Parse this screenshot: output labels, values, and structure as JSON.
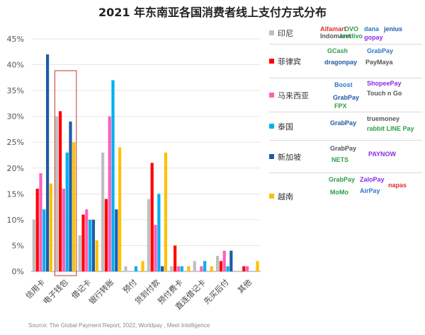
{
  "title": "2021 年东南亚各国消费者线上支付方式分布",
  "source": "Source:   The Global Payment Report, 2022, Worldpay ,  Meet Intelligence",
  "chart_data": {
    "type": "bar",
    "title": "2021 年东南亚各国消费者线上支付方式分布",
    "ylim": [
      0,
      45
    ],
    "yticks": [
      "0%",
      "5%",
      "10%",
      "15%",
      "20%",
      "25%",
      "30%",
      "35%",
      "40%",
      "45%"
    ],
    "grid": true,
    "legend_position": "right",
    "categories": [
      "信用卡",
      "电子钱包",
      "借记卡",
      "银行转账",
      "预付",
      "货到付款",
      "预付费卡",
      "直连借记卡",
      "先买后付",
      "其他"
    ],
    "highlight_category": "电子钱包",
    "series": [
      {
        "name": "印尼",
        "color": "#bfbfbf",
        "values": [
          10,
          30,
          7,
          23,
          1,
          14,
          1,
          2,
          3,
          0
        ]
      },
      {
        "name": "菲律宾",
        "color": "#ff0000",
        "values": [
          16,
          31,
          11,
          14,
          0,
          21,
          5,
          0,
          2,
          1
        ]
      },
      {
        "name": "马来西亚",
        "color": "#ff5fb8",
        "values": [
          19,
          16,
          12,
          30,
          0,
          9,
          1,
          1,
          4,
          1
        ]
      },
      {
        "name": "泰国",
        "color": "#00b0f0",
        "values": [
          12,
          23,
          10,
          37,
          1,
          15,
          1,
          2,
          1,
          0
        ]
      },
      {
        "name": "新加坡",
        "color": "#1f5ba7",
        "values": [
          42,
          29,
          10,
          12,
          0,
          1,
          0,
          0,
          4,
          0
        ]
      },
      {
        "name": "越南",
        "color": "#ffc000",
        "values": [
          17,
          25,
          6,
          24,
          2,
          23,
          1,
          1,
          0,
          2
        ]
      }
    ]
  },
  "legend_brands": [
    [
      "Alfamart",
      "OVO",
      "dana",
      "jenius",
      "Indomaret",
      "kredivo",
      "gopay"
    ],
    [
      "GCash",
      "GrabPay",
      "dragonpay",
      "PayMaya"
    ],
    [
      "Boost",
      "GrabPay",
      "Touch n Go",
      "FPX",
      "ShopeePay"
    ],
    [
      "GrabPay",
      "truemoney",
      "rabbit LINE Pay"
    ],
    [
      "GrabPay",
      "NETS",
      "PAYNOW"
    ],
    [
      "GrabPay",
      "ZaloPay",
      "napas",
      "MoMo",
      "AirPay"
    ]
  ]
}
